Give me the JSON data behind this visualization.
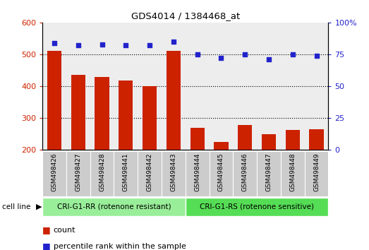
{
  "title": "GDS4014 / 1384468_at",
  "samples": [
    "GSM498426",
    "GSM498427",
    "GSM498428",
    "GSM498441",
    "GSM498442",
    "GSM498443",
    "GSM498444",
    "GSM498445",
    "GSM498446",
    "GSM498447",
    "GSM498448",
    "GSM498449"
  ],
  "counts": [
    510,
    435,
    430,
    418,
    400,
    510,
    270,
    225,
    278,
    250,
    262,
    265
  ],
  "percentiles": [
    84,
    82,
    83,
    82,
    82,
    85,
    75,
    72,
    75,
    71,
    75,
    74
  ],
  "bar_color": "#cc2200",
  "dot_color": "#2222cc",
  "ylim_left": [
    200,
    600
  ],
  "ylim_right": [
    0,
    100
  ],
  "yticks_left": [
    200,
    300,
    400,
    500,
    600
  ],
  "yticks_right": [
    0,
    25,
    50,
    75,
    100
  ],
  "group1_label": "CRI-G1-RR (rotenone resistant)",
  "group2_label": "CRI-G1-RS (rotenone sensitive)",
  "group1_color": "#99ee99",
  "group2_color": "#55dd55",
  "group1_count": 6,
  "group2_count": 6,
  "cell_line_label": "cell line",
  "legend_count": "count",
  "legend_percentile": "percentile rank within the sample",
  "tick_bg_color": "#cccccc",
  "bg_color": "#ffffff"
}
